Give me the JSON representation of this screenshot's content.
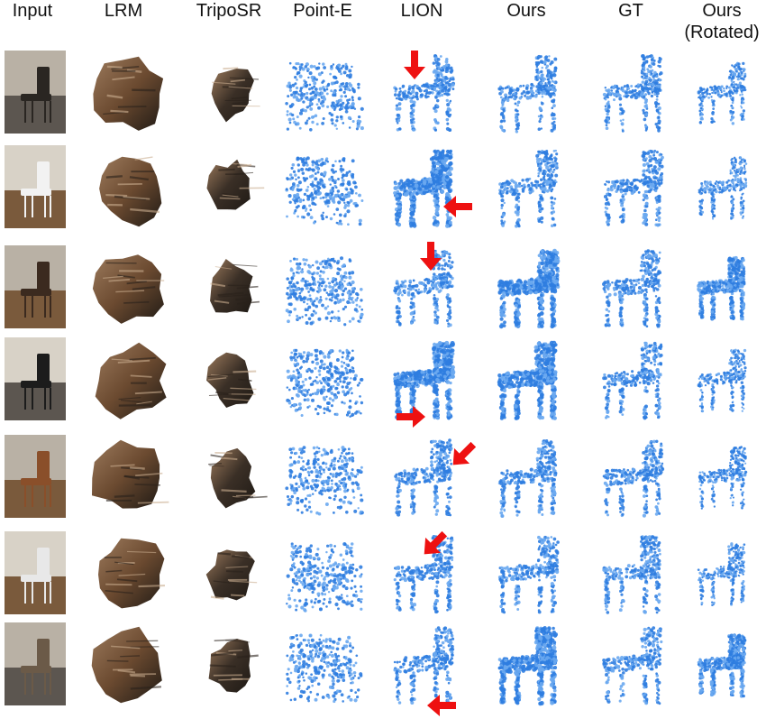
{
  "figure": {
    "columns": [
      {
        "id": "input",
        "label": "Input"
      },
      {
        "id": "lrm",
        "label": "LRM"
      },
      {
        "id": "triposr",
        "label": "TripoSR"
      },
      {
        "id": "pointe",
        "label": "Point-E"
      },
      {
        "id": "lion",
        "label": "LION"
      },
      {
        "id": "ours",
        "label": "Ours"
      },
      {
        "id": "gt",
        "label": "GT"
      },
      {
        "id": "ours_rot",
        "label": "Ours",
        "label2": "(Rotated)"
      }
    ],
    "rows": 7,
    "colors": {
      "point": "#2f7de0",
      "point_light": "#6aa8f0",
      "arrow": "#ee1111",
      "mesh_dark": "#3a2f26",
      "mesh_brown": "#6b4a30",
      "photo_floor": "#7a5a3c",
      "photo_wall": "#cfc6b8"
    },
    "arrows": [
      {
        "row": 0,
        "direction": "down"
      },
      {
        "row": 1,
        "direction": "left"
      },
      {
        "row": 2,
        "direction": "down"
      },
      {
        "row": 3,
        "direction": "right"
      },
      {
        "row": 4,
        "direction": "down-left"
      },
      {
        "row": 5,
        "direction": "down-left"
      },
      {
        "row": 6,
        "direction": "left"
      }
    ]
  }
}
